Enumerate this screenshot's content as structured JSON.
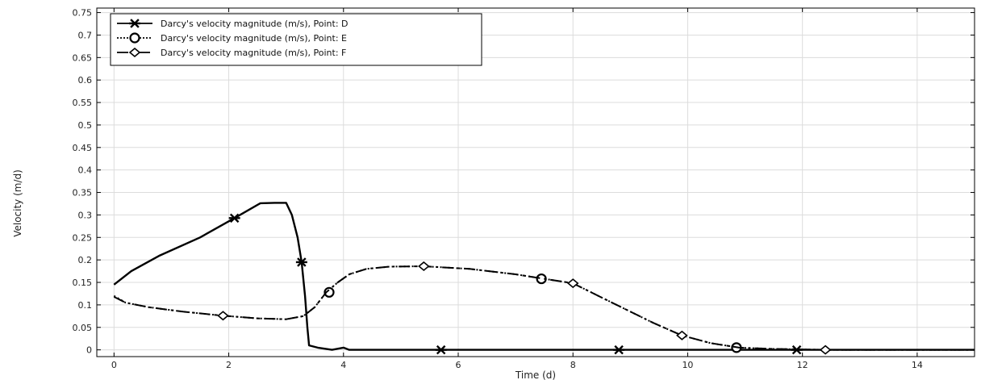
{
  "chart_data": {
    "type": "line",
    "title": "",
    "xlabel": "Time (d)",
    "ylabel": "Velocity (m/d)",
    "xlim": [
      -0.3,
      15
    ],
    "ylim": [
      -0.015,
      0.76
    ],
    "xticks": [
      0,
      2,
      4,
      6,
      8,
      10,
      12,
      14
    ],
    "yticks": [
      0,
      0.05,
      0.1,
      0.15,
      0.2,
      0.25,
      0.3,
      0.35,
      0.4,
      0.45,
      0.5,
      0.55,
      0.6,
      0.65,
      0.7,
      0.75
    ],
    "xtick_labels": [
      "0",
      "2",
      "4",
      "6",
      "8",
      "10",
      "12",
      "14"
    ],
    "ytick_labels": [
      "0",
      "0.05",
      "0.1",
      "0.15",
      "0.2",
      "0.25",
      "0.3",
      "0.35",
      "0.4",
      "0.45",
      "0.5",
      "0.55",
      "0.6",
      "0.65",
      "0.7",
      "0.75"
    ],
    "grid": true,
    "legend_position": "top-left",
    "series": [
      {
        "name": "Darcy's velocity magnitude (m/s), Point: D",
        "line_style": "solid",
        "marker": "star",
        "color": "#000000",
        "x": [
          0,
          0.3,
          0.8,
          1.5,
          2.1,
          2.55,
          2.8,
          3.0,
          3.1,
          3.2,
          3.27,
          3.33,
          3.37,
          3.4,
          3.55,
          3.8,
          4.0,
          4.1,
          6,
          8,
          10,
          12,
          14,
          15
        ],
        "y": [
          0.145,
          0.175,
          0.21,
          0.25,
          0.293,
          0.326,
          0.327,
          0.327,
          0.3,
          0.25,
          0.195,
          0.12,
          0.05,
          0.01,
          0.005,
          0.0,
          0.005,
          0.0,
          0.0,
          0.0,
          0.0,
          0.0,
          0.0,
          0.0
        ],
        "markers_x": [
          2.1,
          3.27,
          5.7,
          8.8,
          11.9
        ],
        "markers_y": [
          0.293,
          0.195,
          0.0,
          0.0,
          0.0
        ]
      },
      {
        "name": "Darcy's velocity magnitude (m/s), Point: E",
        "line_style": "dotted",
        "marker": "circle",
        "color": "#000000",
        "x": [
          0,
          0.2,
          0.6,
          1.2,
          1.9,
          2.5,
          3.0,
          3.3,
          3.5,
          3.7,
          3.9,
          4.1,
          4.4,
          4.8,
          5.4,
          6.2,
          7.0,
          7.5,
          8.0,
          8.6,
          9.4,
          9.9,
          10.4,
          10.9,
          11.5,
          12.0,
          12.4,
          14,
          15
        ],
        "y": [
          0.12,
          0.105,
          0.095,
          0.085,
          0.076,
          0.07,
          0.068,
          0.075,
          0.095,
          0.128,
          0.15,
          0.168,
          0.18,
          0.185,
          0.186,
          0.18,
          0.168,
          0.158,
          0.148,
          0.11,
          0.06,
          0.032,
          0.015,
          0.005,
          0.002,
          0.001,
          0.0,
          0.0,
          0.0
        ],
        "markers_x": [
          3.75,
          7.45,
          10.85
        ],
        "markers_y": [
          0.128,
          0.158,
          0.005
        ]
      },
      {
        "name": "Darcy's velocity magnitude (m/s), Point: F",
        "line_style": "dashdot",
        "marker": "diamond",
        "color": "#000000",
        "x": [
          0,
          0.2,
          0.6,
          1.2,
          1.9,
          2.5,
          3.0,
          3.3,
          3.5,
          3.7,
          3.9,
          4.1,
          4.4,
          4.8,
          5.4,
          6.2,
          7.0,
          7.5,
          8.0,
          8.6,
          9.4,
          9.9,
          10.4,
          10.9,
          11.5,
          12.0,
          12.4,
          14,
          15
        ],
        "y": [
          0.118,
          0.105,
          0.095,
          0.085,
          0.076,
          0.07,
          0.068,
          0.075,
          0.095,
          0.128,
          0.15,
          0.168,
          0.18,
          0.185,
          0.186,
          0.18,
          0.168,
          0.158,
          0.148,
          0.11,
          0.06,
          0.032,
          0.015,
          0.005,
          0.002,
          0.001,
          0.0,
          0.0,
          0.0
        ],
        "markers_x": [
          1.9,
          5.4,
          8.0,
          9.9,
          12.4
        ],
        "markers_y": [
          0.076,
          0.186,
          0.148,
          0.032,
          0.0
        ]
      }
    ]
  }
}
